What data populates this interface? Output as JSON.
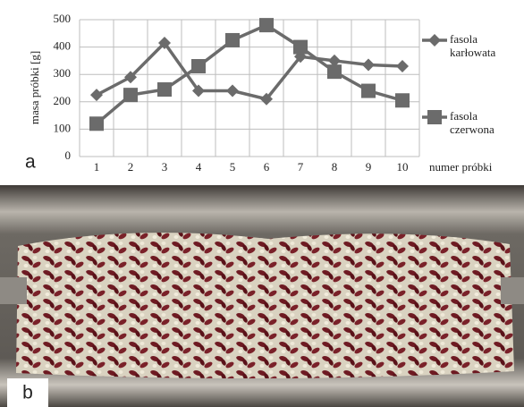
{
  "chart_data": {
    "type": "line",
    "annotation": "a",
    "x_label": "numer próbki",
    "y_label": "masa próbki [g]",
    "categories": [
      "1",
      "2",
      "3",
      "4",
      "5",
      "6",
      "7",
      "8",
      "9",
      "10"
    ],
    "series": [
      {
        "name": "fasola karłowata",
        "color": "#6b6b6b",
        "marker": "diamond",
        "values": [
          225,
          290,
          415,
          240,
          240,
          210,
          365,
          350,
          335,
          330
        ]
      },
      {
        "name": "fasola czerwona",
        "color": "#6b6b6b",
        "marker": "square",
        "values": [
          120,
          225,
          245,
          330,
          425,
          480,
          400,
          310,
          240,
          205
        ]
      }
    ],
    "ylim": [
      0,
      500
    ],
    "yticks": [
      0,
      100,
      200,
      300,
      400,
      500
    ],
    "grid": true
  },
  "photo": {
    "label": "b"
  }
}
